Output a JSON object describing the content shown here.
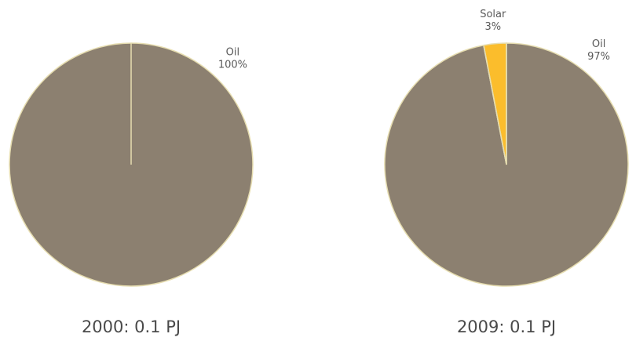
{
  "chart_data": [
    {
      "type": "pie",
      "caption": "2000: 0.1 PJ",
      "slices": [
        {
          "label": "Oil",
          "pct_label": "100%",
          "value": 100,
          "color": "#8c8070"
        }
      ]
    },
    {
      "type": "pie",
      "caption": "2009: 0.1 PJ",
      "slices": [
        {
          "label": "Oil",
          "pct_label": "97%",
          "value": 97,
          "color": "#8c8070"
        },
        {
          "label": "Solar",
          "pct_label": "3%",
          "value": 3,
          "color": "#fbbd2c"
        }
      ]
    }
  ],
  "colors": {
    "slice_border": "#e6ddb0"
  }
}
